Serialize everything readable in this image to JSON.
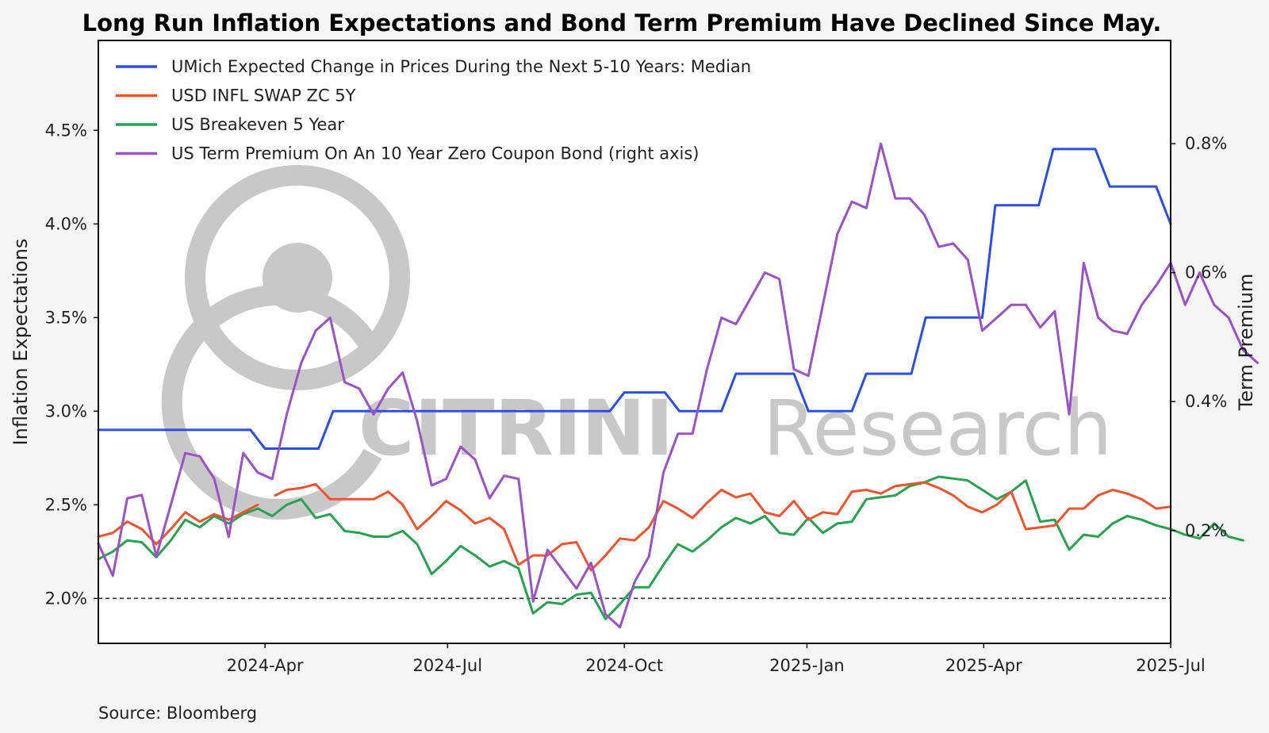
{
  "chart_data": {
    "type": "line",
    "title": "Long Run Inflation Expectations and Bond Term Premium Have Declined Since May.",
    "ylabel": "Inflation Expectations",
    "y2label": "Term Premium",
    "source": "Source: Bloomberg",
    "ylim": [
      1.76,
      4.98
    ],
    "y2lim": [
      0.025,
      0.96
    ],
    "x_range_weeks": [
      0,
      74
    ],
    "y_ticks": [
      {
        "v": 2.0,
        "label": "2.0%"
      },
      {
        "v": 2.5,
        "label": "2.5%"
      },
      {
        "v": 3.0,
        "label": "3.0%"
      },
      {
        "v": 3.5,
        "label": "3.5%"
      },
      {
        "v": 4.0,
        "label": "4.0%"
      },
      {
        "v": 4.5,
        "label": "4.5%"
      }
    ],
    "y2_ticks": [
      {
        "v": 0.2,
        "label": "0.2%"
      },
      {
        "v": 0.4,
        "label": "0.4%"
      },
      {
        "v": 0.6,
        "label": "0.6%"
      },
      {
        "v": 0.8,
        "label": "0.8%"
      }
    ],
    "x_ticks": [
      {
        "v": 11.5,
        "label": "2024-Apr"
      },
      {
        "v": 24.1,
        "label": "2024-Jul"
      },
      {
        "v": 36.3,
        "label": "2024-Oct"
      },
      {
        "v": 48.9,
        "label": "2025-Jan"
      },
      {
        "v": 61.1,
        "label": "2025-Apr"
      },
      {
        "v": 74.0,
        "label": "2025-Jul"
      }
    ],
    "reference_line": 2.0,
    "watermark": {
      "brand": "CITRINI",
      "suffix": "Research"
    },
    "series": [
      {
        "name": "UMich Expected Change in Prices During the Next 5-10 Years: Median",
        "color": "#2b4fe3",
        "axis": "left",
        "points": [
          [
            0,
            2.9
          ],
          [
            10.5,
            2.9
          ],
          [
            11.5,
            2.8
          ],
          [
            15.2,
            2.8
          ],
          [
            16.2,
            3.0
          ],
          [
            35.3,
            3.0
          ],
          [
            36.3,
            3.1
          ],
          [
            39.1,
            3.1
          ],
          [
            40.1,
            3.0
          ],
          [
            43.0,
            3.0
          ],
          [
            44.0,
            3.2
          ],
          [
            48.0,
            3.2
          ],
          [
            49.0,
            3.0
          ],
          [
            52.0,
            3.0
          ],
          [
            53.0,
            3.2
          ],
          [
            56.1,
            3.2
          ],
          [
            57.1,
            3.5
          ],
          [
            61.0,
            3.5
          ],
          [
            61.9,
            4.1
          ],
          [
            64.9,
            4.1
          ],
          [
            65.9,
            4.4
          ],
          [
            68.8,
            4.4
          ],
          [
            69.8,
            4.2
          ],
          [
            73.0,
            4.2
          ],
          [
            74,
            4.0
          ]
        ]
      },
      {
        "name": "USD INFL SWAP ZC 5Y",
        "color": "#f0532e",
        "axis": "left",
        "segments": [
          [
            [
              0,
              2.33
            ],
            [
              1,
              2.35
            ],
            [
              2,
              2.41
            ],
            [
              3,
              2.37
            ],
            [
              4,
              2.29
            ],
            [
              5,
              2.37
            ],
            [
              6,
              2.46
            ],
            [
              7,
              2.41
            ],
            [
              8,
              2.45
            ],
            [
              9,
              2.42
            ],
            [
              10,
              2.46
            ],
            [
              11,
              2.5
            ]
          ],
          [
            [
              12.2,
              2.55
            ],
            [
              13,
              2.58
            ],
            [
              14,
              2.59
            ],
            [
              15,
              2.61
            ],
            [
              16,
              2.53
            ],
            [
              17,
              2.53
            ],
            [
              18,
              2.53
            ],
            [
              19,
              2.53
            ],
            [
              20,
              2.57
            ],
            [
              21,
              2.5
            ],
            [
              22,
              2.37
            ],
            [
              23,
              2.44
            ],
            [
              24,
              2.52
            ],
            [
              25,
              2.47
            ],
            [
              26,
              2.4
            ],
            [
              27,
              2.43
            ],
            [
              28,
              2.37
            ],
            [
              29,
              2.18
            ],
            [
              30,
              2.23
            ],
            [
              31,
              2.23
            ],
            [
              32,
              2.29
            ],
            [
              33,
              2.3
            ],
            [
              34,
              2.15
            ],
            [
              35,
              2.23
            ],
            [
              36,
              2.32
            ],
            [
              37,
              2.31
            ],
            [
              38,
              2.38
            ],
            [
              39,
              2.52
            ],
            [
              40,
              2.48
            ],
            [
              41,
              2.43
            ],
            [
              42,
              2.51
            ],
            [
              43,
              2.58
            ],
            [
              44,
              2.54
            ],
            [
              45,
              2.56
            ],
            [
              46,
              2.46
            ],
            [
              47,
              2.44
            ],
            [
              48,
              2.52
            ],
            [
              49,
              2.42
            ],
            [
              50,
              2.46
            ],
            [
              51,
              2.45
            ],
            [
              52,
              2.57
            ],
            [
              53,
              2.58
            ],
            [
              54,
              2.56
            ],
            [
              55,
              2.6
            ],
            [
              56,
              2.61
            ],
            [
              57,
              2.62
            ],
            [
              58,
              2.59
            ],
            [
              59,
              2.55
            ],
            [
              60,
              2.49
            ],
            [
              61,
              2.46
            ],
            [
              62,
              2.5
            ],
            [
              63,
              2.57
            ],
            [
              64,
              2.37
            ],
            [
              65,
              2.38
            ],
            [
              66,
              2.39
            ],
            [
              67,
              2.48
            ],
            [
              68,
              2.48
            ],
            [
              69,
              2.55
            ],
            [
              70,
              2.58
            ],
            [
              71,
              2.56
            ],
            [
              72,
              2.53
            ],
            [
              73,
              2.48
            ],
            [
              74,
              2.49
            ]
          ]
        ]
      },
      {
        "name": "US Breakeven 5 Year",
        "color": "#27a350",
        "axis": "left",
        "points": [
          [
            0,
            2.21
          ],
          [
            1,
            2.25
          ],
          [
            2,
            2.31
          ],
          [
            3,
            2.3
          ],
          [
            4,
            2.22
          ],
          [
            5,
            2.31
          ],
          [
            6,
            2.42
          ],
          [
            7,
            2.38
          ],
          [
            8,
            2.44
          ],
          [
            9,
            2.4
          ],
          [
            10,
            2.45
          ],
          [
            11,
            2.48
          ],
          [
            12,
            2.44
          ],
          [
            13,
            2.5
          ],
          [
            14,
            2.53
          ],
          [
            15,
            2.43
          ],
          [
            16,
            2.45
          ],
          [
            17,
            2.36
          ],
          [
            18,
            2.35
          ],
          [
            19,
            2.33
          ],
          [
            20,
            2.33
          ],
          [
            21,
            2.36
          ],
          [
            22,
            2.29
          ],
          [
            23,
            2.13
          ],
          [
            24,
            2.2
          ],
          [
            25,
            2.28
          ],
          [
            26,
            2.23
          ],
          [
            27,
            2.17
          ],
          [
            28,
            2.2
          ],
          [
            29,
            2.16
          ],
          [
            30,
            1.92
          ],
          [
            31,
            1.98
          ],
          [
            32,
            1.97
          ],
          [
            33,
            2.02
          ],
          [
            34,
            2.03
          ],
          [
            35,
            1.89
          ],
          [
            36,
            1.97
          ],
          [
            37,
            2.06
          ],
          [
            38,
            2.06
          ],
          [
            39,
            2.18
          ],
          [
            40,
            2.29
          ],
          [
            41,
            2.25
          ],
          [
            42,
            2.31
          ],
          [
            43,
            2.38
          ],
          [
            44,
            2.43
          ],
          [
            45,
            2.4
          ],
          [
            46,
            2.44
          ],
          [
            47,
            2.35
          ],
          [
            48,
            2.34
          ],
          [
            49,
            2.43
          ],
          [
            50,
            2.35
          ],
          [
            51,
            2.4
          ],
          [
            52,
            2.41
          ],
          [
            53,
            2.53
          ],
          [
            54,
            2.54
          ],
          [
            55,
            2.55
          ],
          [
            56,
            2.6
          ],
          [
            57,
            2.62
          ],
          [
            58,
            2.65
          ],
          [
            59,
            2.64
          ],
          [
            60,
            2.63
          ],
          [
            61,
            2.58
          ],
          [
            62,
            2.53
          ],
          [
            63,
            2.57
          ],
          [
            64,
            2.63
          ],
          [
            65,
            2.41
          ],
          [
            66,
            2.42
          ],
          [
            67,
            2.26
          ],
          [
            68,
            2.34
          ],
          [
            69,
            2.33
          ],
          [
            70,
            2.4
          ],
          [
            71,
            2.44
          ],
          [
            72,
            2.42
          ],
          [
            73,
            2.39
          ],
          [
            74,
            2.37
          ],
          [
            75,
            2.34
          ],
          [
            76,
            2.32
          ],
          [
            77,
            2.4
          ],
          [
            78,
            2.33
          ],
          [
            79,
            2.31
          ]
        ]
      },
      {
        "name": "US Term Premium On An 10 Year Zero Coupon Bond (right axis)",
        "color": "#9b52c6",
        "axis": "right",
        "points": [
          [
            0,
            0.18
          ],
          [
            1,
            0.13
          ],
          [
            2,
            0.25
          ],
          [
            3,
            0.255
          ],
          [
            4,
            0.16
          ],
          [
            5,
            0.24
          ],
          [
            6,
            0.32
          ],
          [
            7,
            0.315
          ],
          [
            8,
            0.28
          ],
          [
            9,
            0.19
          ],
          [
            10,
            0.32
          ],
          [
            11,
            0.29
          ],
          [
            12,
            0.28
          ],
          [
            13,
            0.38
          ],
          [
            14,
            0.46
          ],
          [
            15,
            0.51
          ],
          [
            16,
            0.53
          ],
          [
            17,
            0.43
          ],
          [
            18,
            0.42
          ],
          [
            19,
            0.38
          ],
          [
            20,
            0.42
          ],
          [
            21,
            0.445
          ],
          [
            22,
            0.37
          ],
          [
            23,
            0.27
          ],
          [
            24,
            0.28
          ],
          [
            25,
            0.33
          ],
          [
            26,
            0.31
          ],
          [
            27,
            0.25
          ],
          [
            28,
            0.285
          ],
          [
            29,
            0.28
          ],
          [
            30,
            0.09
          ],
          [
            31,
            0.17
          ],
          [
            32,
            0.14
          ],
          [
            33,
            0.11
          ],
          [
            34,
            0.15
          ],
          [
            35,
            0.07
          ],
          [
            36,
            0.05
          ],
          [
            37,
            0.12
          ],
          [
            38,
            0.16
          ],
          [
            39,
            0.29
          ],
          [
            40,
            0.35
          ],
          [
            41,
            0.35
          ],
          [
            42,
            0.45
          ],
          [
            43,
            0.53
          ],
          [
            44,
            0.52
          ],
          [
            45,
            0.56
          ],
          [
            46,
            0.6
          ],
          [
            47,
            0.59
          ],
          [
            48,
            0.45
          ],
          [
            49,
            0.44
          ],
          [
            50,
            0.55
          ],
          [
            51,
            0.66
          ],
          [
            52,
            0.71
          ],
          [
            53,
            0.7
          ],
          [
            54,
            0.8
          ],
          [
            55,
            0.715
          ],
          [
            56,
            0.715
          ],
          [
            57,
            0.69
          ],
          [
            58,
            0.64
          ],
          [
            59,
            0.645
          ],
          [
            60,
            0.62
          ],
          [
            61,
            0.51
          ],
          [
            62,
            0.53
          ],
          [
            63,
            0.55
          ],
          [
            64,
            0.55
          ],
          [
            65,
            0.515
          ],
          [
            66,
            0.54
          ],
          [
            67,
            0.38
          ],
          [
            68,
            0.615
          ],
          [
            69,
            0.53
          ],
          [
            70,
            0.51
          ],
          [
            71,
            0.505
          ],
          [
            72,
            0.55
          ],
          [
            73,
            0.58
          ],
          [
            74,
            0.615
          ],
          [
            75,
            0.55
          ],
          [
            76,
            0.6
          ],
          [
            77,
            0.55
          ],
          [
            78,
            0.53
          ],
          [
            79,
            0.48
          ],
          [
            80,
            0.46
          ]
        ]
      }
    ]
  }
}
